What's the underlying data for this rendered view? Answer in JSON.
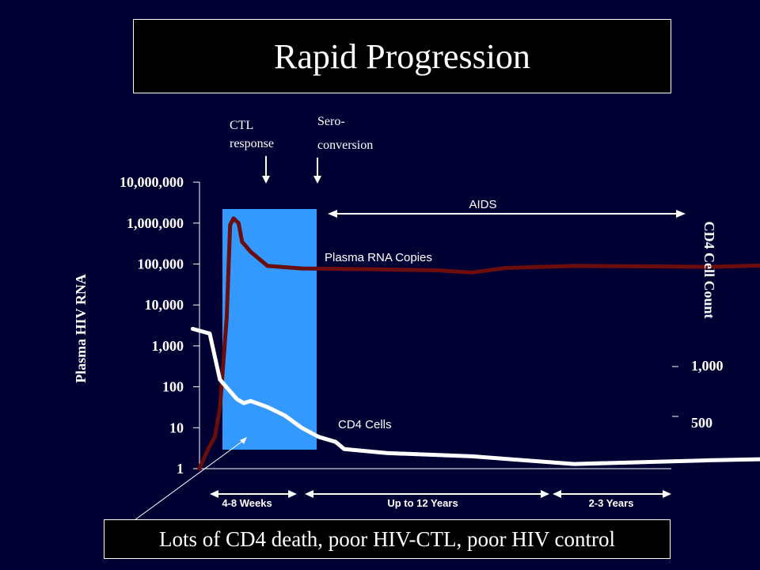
{
  "title": "Rapid Progression",
  "caption": "Lots of CD4 death, poor HIV-CTL, poor HIV control",
  "colors": {
    "background": "#000033",
    "rna_line": "#6b0d0d",
    "cd4_line": "#ffffff",
    "window": "#3399ff"
  },
  "chart_data": {
    "type": "line",
    "ylabel": "Plasma HIV RNA",
    "ylabel_right": "CD4 Cell Count",
    "yscale": "log",
    "ylim": [
      1,
      10000000
    ],
    "y_ticks": [
      "1",
      "10",
      "100",
      "1,000",
      "10,000",
      "100,000",
      "1,000,000",
      "10,000,000"
    ],
    "right_ticks": [
      "1,000",
      "500"
    ],
    "x_segments": [
      "4-8 Weeks",
      "Up to 12 Years",
      "2-3 Years"
    ],
    "annotations": {
      "ctl": "CTL response",
      "sero": "Sero- conversion",
      "aids": "AIDS",
      "rna_label": "Plasma RNA Copies",
      "cd4_label": "CD4 Cells"
    },
    "series": [
      {
        "name": "Plasma RNA Copies",
        "points": [
          [
            0,
            1
          ],
          [
            0.5,
            3
          ],
          [
            0.9,
            6
          ],
          [
            1.2,
            30
          ],
          [
            1.6,
            5000
          ],
          [
            1.8,
            900000
          ],
          [
            2.0,
            1300000
          ],
          [
            2.3,
            1000000
          ],
          [
            2.5,
            350000
          ],
          [
            3,
            200000
          ],
          [
            4,
            90000
          ],
          [
            6,
            78000
          ],
          [
            10,
            75000
          ],
          [
            14,
            70000
          ],
          [
            16,
            62000
          ],
          [
            18,
            80000
          ],
          [
            22,
            90000
          ],
          [
            26,
            88000
          ],
          [
            30,
            85000
          ],
          [
            34,
            95000
          ],
          [
            38,
            125000
          ],
          [
            40,
            140000
          ]
        ]
      },
      {
        "name": "CD4 Cells",
        "points": [
          [
            -0.4,
            2600
          ],
          [
            0.6,
            2000
          ],
          [
            1.2,
            150
          ],
          [
            2.2,
            50
          ],
          [
            2.6,
            40
          ],
          [
            3,
            45
          ],
          [
            4,
            32
          ],
          [
            5,
            20
          ],
          [
            6,
            10
          ],
          [
            7,
            6
          ],
          [
            8,
            4.5
          ],
          [
            8.5,
            3
          ],
          [
            11,
            2.4
          ],
          [
            16,
            2.0
          ],
          [
            20,
            1.5
          ],
          [
            22,
            1.3
          ],
          [
            30,
            1.6
          ],
          [
            36,
            1.8
          ],
          [
            40,
            1.9
          ],
          [
            41,
            1.8
          ],
          [
            43,
            1.8
          ]
        ]
      }
    ]
  }
}
